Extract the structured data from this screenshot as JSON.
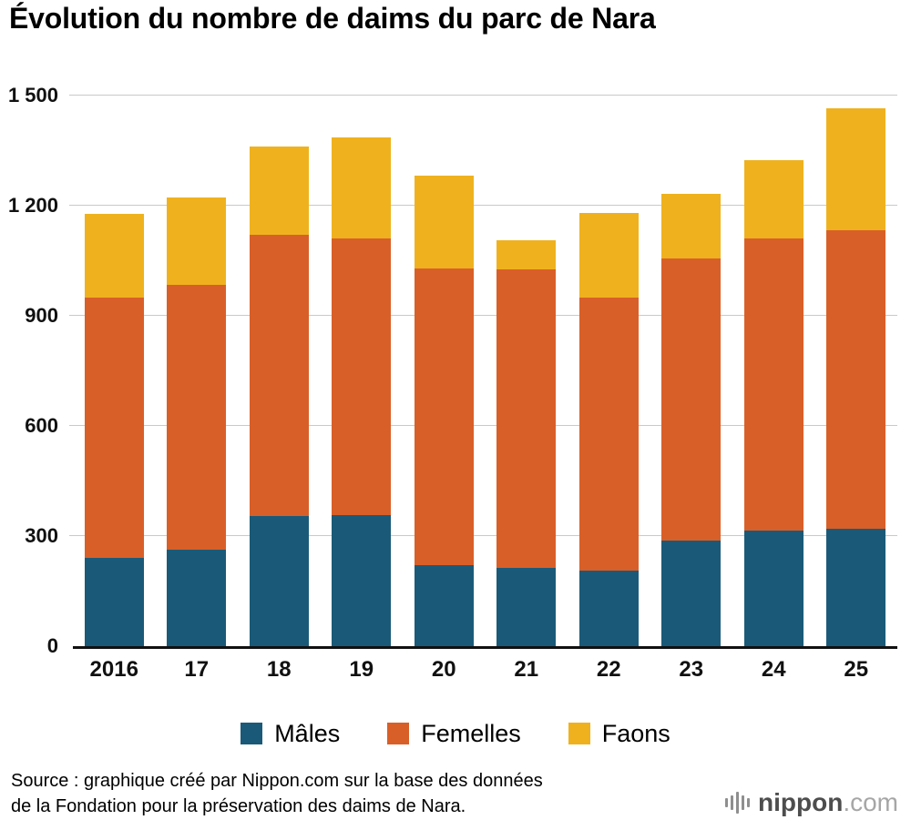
{
  "title": "Évolution du nombre de daims du parc de Nara",
  "source": {
    "line1": "Source : graphique créé par Nippon.com sur la base des données",
    "line2": "de la Fondation pour la préservation des daims de Nara."
  },
  "branding": {
    "name": "nippon",
    "tld": ".com"
  },
  "chart_data": {
    "type": "bar",
    "stacked": true,
    "title": "Évolution du nombre de daims du parc de Nara",
    "categories": [
      "2016",
      "17",
      "18",
      "19",
      "20",
      "21",
      "22",
      "23",
      "24",
      "25"
    ],
    "series": [
      {
        "name": "Mâles",
        "slug": "males",
        "color": "#1a5a78",
        "values": [
          240,
          262,
          355,
          357,
          220,
          214,
          205,
          288,
          315,
          320
        ]
      },
      {
        "name": "Femelles",
        "slug": "femelles",
        "color": "#d95f28",
        "values": [
          710,
          723,
          765,
          753,
          808,
          812,
          745,
          768,
          795,
          812
        ]
      },
      {
        "name": "Faons",
        "slug": "faons",
        "color": "#efb21e",
        "values": [
          228,
          237,
          242,
          276,
          255,
          80,
          230,
          176,
          215,
          333
        ]
      }
    ],
    "totals": [
      1178,
      1222,
      1362,
      1386,
      1283,
      1106,
      1180,
      1232,
      1325,
      1465
    ],
    "xlabel": "",
    "ylabel": "",
    "ylim": [
      0,
      1500
    ],
    "yticks": [
      0,
      300,
      600,
      900,
      1200,
      1500
    ],
    "ytick_labels": [
      "0",
      "300",
      "600",
      "900",
      "1 200",
      "1 500"
    ],
    "grid": true,
    "gridline_color": "#c9c9c9",
    "axis_color": "#111111",
    "background": "#ffffff",
    "legend_position": "bottom"
  }
}
